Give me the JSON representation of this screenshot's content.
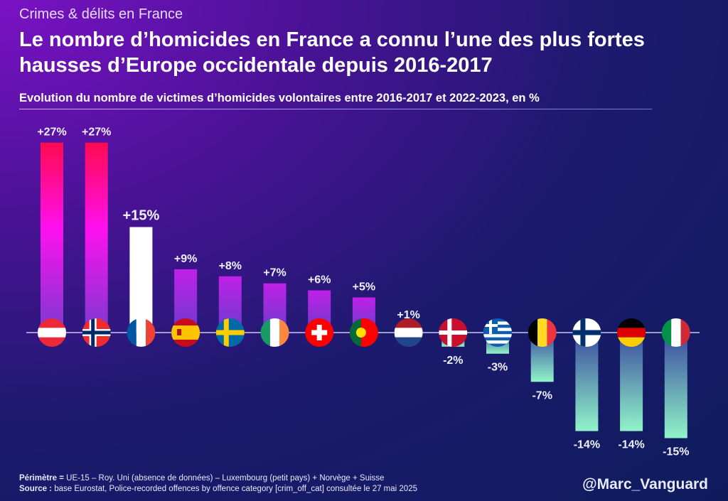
{
  "header": {
    "kicker": "Crimes & délits en France",
    "title": "Le nombre d’homicides en France a connu l’une des plus fortes hausses d’Europe occidentale depuis 2016-2017",
    "subtitle": "Evolution du nombre de victimes d’homicides volontaires entre 2016-2017 et 2022-2023, en %"
  },
  "chart_data": {
    "type": "bar",
    "title": "Evolution du nombre de victimes d’homicides volontaires entre 2016-2017 et 2022-2023, en %",
    "categories": [
      "austria-flag",
      "norway-flag",
      "france-flag",
      "spain-flag",
      "sweden-flag",
      "ireland-flag",
      "switzerland-flag",
      "portugal-flag",
      "netherlands-flag",
      "denmark-flag",
      "greece-flag",
      "belgium-flag",
      "finland-flag",
      "germany-flag",
      "italy-flag"
    ],
    "values": [
      27,
      27,
      15,
      9,
      8,
      7,
      6,
      5,
      1,
      -2,
      -3,
      -7,
      -14,
      -14,
      -15
    ],
    "labels": [
      "+27%",
      "+27%",
      "+15%",
      "+9%",
      "+8%",
      "+7%",
      "+6%",
      "+5%",
      "+1%",
      "-2%",
      "-3%",
      "-7%",
      "-14%",
      "-14%",
      "-15%"
    ],
    "unit": "%",
    "ylim": [
      -15,
      27
    ],
    "grid": false,
    "colors": {
      "top_positive": "#ff0a50",
      "mid_positive": "#ff10ee",
      "positive": "#9a3ad8",
      "highlight": "#ffffff",
      "negative": "#8ff0c8",
      "baseline": "#c8c8e8"
    }
  },
  "footer": {
    "perimetre_label": "Périmètre =",
    "perimetre_text": " UE-15 – Roy. Uni (absence de données) – Luxembourg (petit pays) + Norvège + Suisse",
    "source_label": "Source :",
    "source_text": " base Eurostat, Police-recorded offences by offence category [crim_off_cat]  consultée le 27 mai 2025",
    "handle": "@Marc_Vanguard"
  }
}
